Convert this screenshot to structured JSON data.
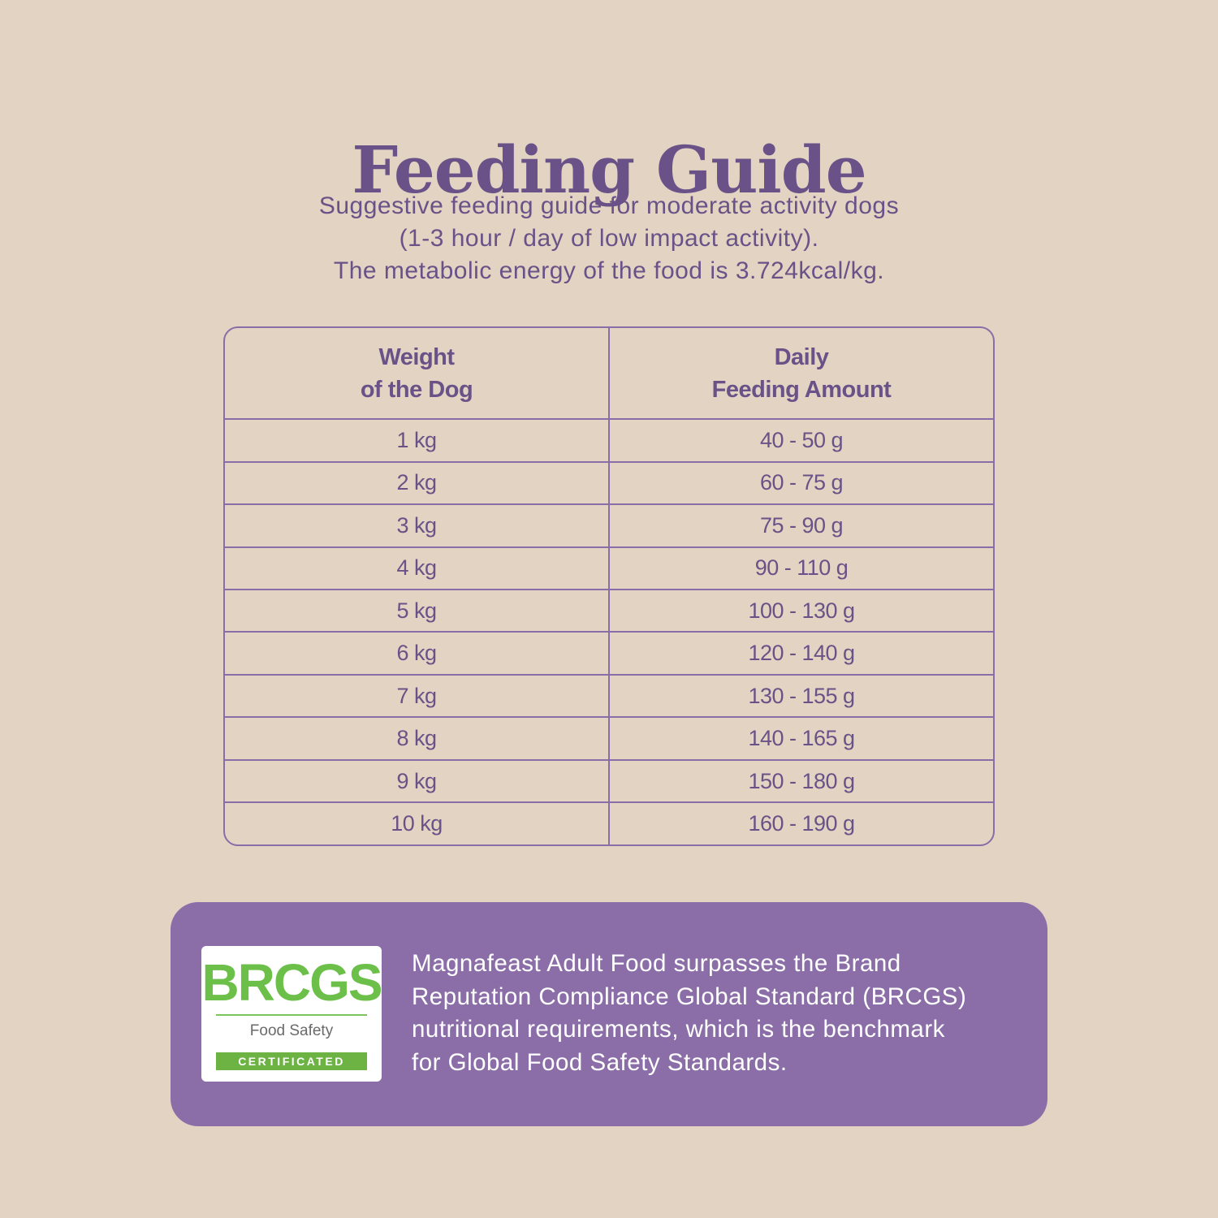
{
  "title": "Feeding Guide",
  "subtitle_lines": [
    "Suggestive feeding guide for moderate activity dogs",
    "(1-3 hour / day of low impact activity).",
    "The metabolic energy of the food is 3.724kcal/kg."
  ],
  "table": {
    "headers": [
      {
        "line1": "Weight",
        "line2": "of the Dog"
      },
      {
        "line1": "Daily",
        "line2": "Feeding Amount"
      }
    ],
    "rows": [
      {
        "weight": "1 kg",
        "amount": "40 - 50 g"
      },
      {
        "weight": "2 kg",
        "amount": "60 - 75 g"
      },
      {
        "weight": "3 kg",
        "amount": "75 - 90 g"
      },
      {
        "weight": "4 kg",
        "amount": "90 - 110 g"
      },
      {
        "weight": "5 kg",
        "amount": "100 - 130 g"
      },
      {
        "weight": "6 kg",
        "amount": "120 - 140 g"
      },
      {
        "weight": "7 kg",
        "amount": "130 - 155 g"
      },
      {
        "weight": "8 kg",
        "amount": "140 - 165 g"
      },
      {
        "weight": "9 kg",
        "amount": "150 - 180 g"
      },
      {
        "weight": "10 kg",
        "amount": "160 - 190 g"
      }
    ]
  },
  "certification": {
    "badge": {
      "logo": "BRCGS",
      "subtitle": "Food Safety",
      "label": "CERTIFICATED"
    },
    "text_lines": [
      "Magnafeast Adult Food surpasses the Brand",
      "Reputation Compliance Global Standard (BRCGS)",
      "nutritional requirements, which is the benchmark",
      "for Global Food Safety Standards."
    ]
  },
  "colors": {
    "background": "#e2d3c2",
    "primary_purple": "#6a5288",
    "panel_purple": "#8b6ea8",
    "badge_green": "#6cc04a"
  }
}
